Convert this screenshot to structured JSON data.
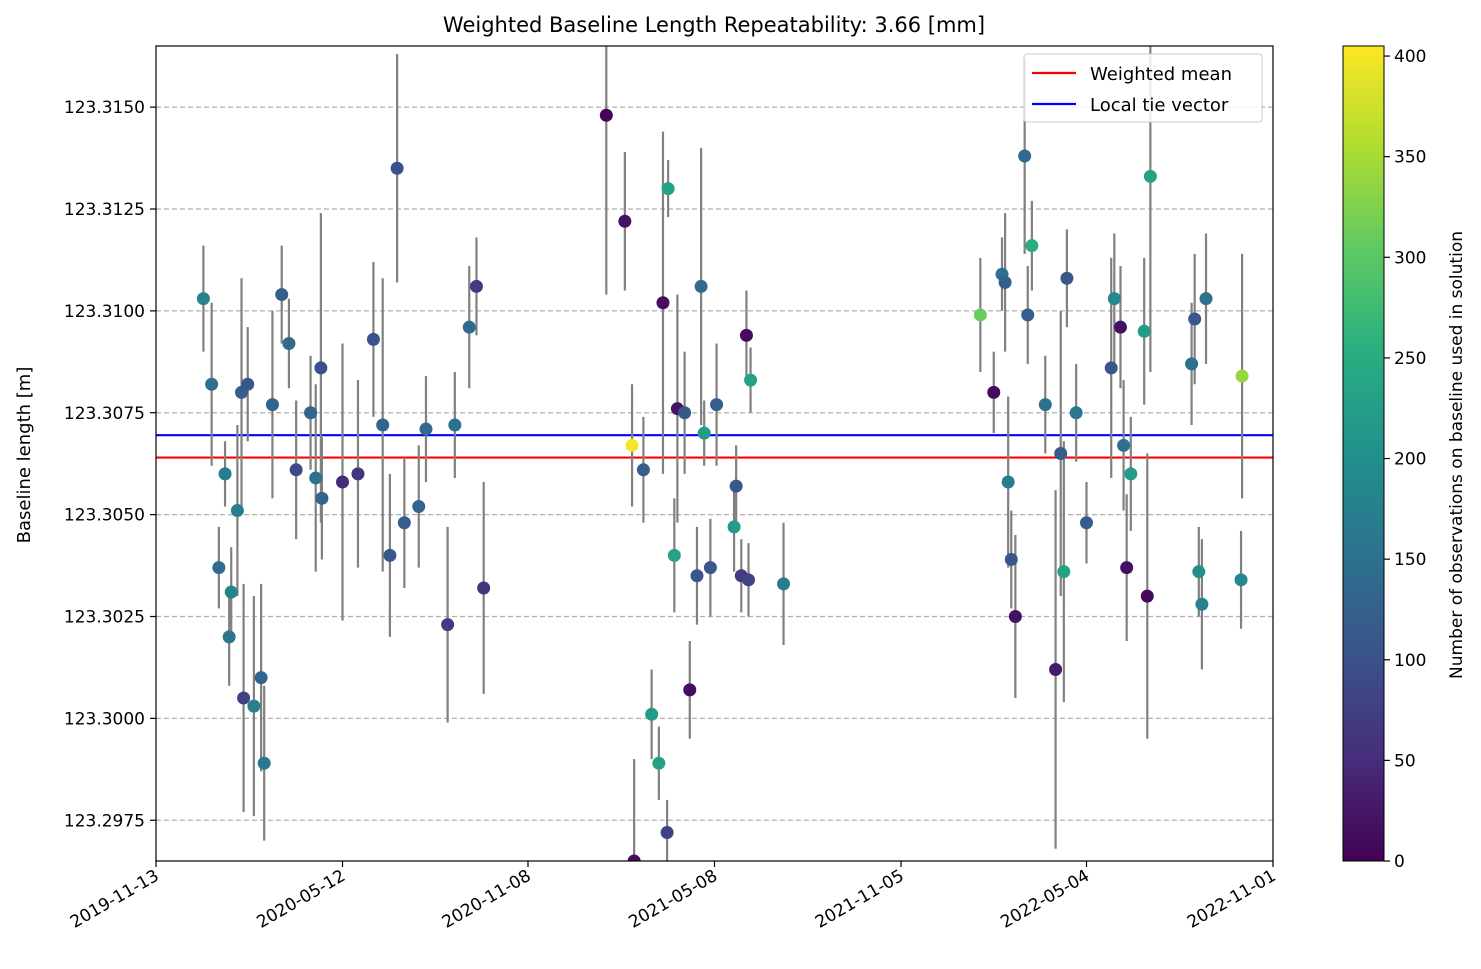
{
  "chart_data": {
    "type": "scatter",
    "title": "Weighted Baseline Length Repeatability: 3.66 [mm]",
    "xlabel": "",
    "ylabel": "Baseline length [m]",
    "x_type": "date",
    "xlim": [
      "2019-11-13",
      "2022-11-01"
    ],
    "ylim": [
      123.2965,
      123.3165
    ],
    "x_ticks": [
      "2019-11-13",
      "2020-05-12",
      "2020-11-08",
      "2021-05-08",
      "2021-11-05",
      "2022-05-04",
      "2022-11-01"
    ],
    "y_ticks": [
      "123.2975",
      "123.3000",
      "123.3025",
      "123.3050",
      "123.3075",
      "123.3100",
      "123.3125",
      "123.3150"
    ],
    "grid": "y",
    "legend_position": "top-right",
    "legend": [
      {
        "label": "Weighted mean",
        "color": "#ff0000"
      },
      {
        "label": "Local tie vector",
        "color": "#0000ff"
      }
    ],
    "hlines": [
      {
        "name": "Weighted mean",
        "y": 123.3064,
        "color": "#ff0000"
      },
      {
        "name": "Local tie vector",
        "y": 123.30695,
        "color": "#0000ff"
      }
    ],
    "errorbar_color": "#808080",
    "colormap": "viridis",
    "colorbar": {
      "label": "Number of observations on baseline used in solution",
      "range": [
        0,
        405
      ],
      "ticks": [
        "0",
        "50",
        "100",
        "150",
        "200",
        "250",
        "300",
        "350",
        "400"
      ]
    },
    "points": [
      {
        "x": "2019-12-29",
        "y": 123.3103,
        "err": 0.0013,
        "c": 180
      },
      {
        "x": "2020-01-06",
        "y": 123.3082,
        "err": 0.002,
        "c": 150
      },
      {
        "x": "2020-01-13",
        "y": 123.3037,
        "err": 0.001,
        "c": 140
      },
      {
        "x": "2020-01-19",
        "y": 123.306,
        "err": 0.0008,
        "c": 170
      },
      {
        "x": "2020-01-23",
        "y": 123.302,
        "err": 0.0012,
        "c": 160
      },
      {
        "x": "2020-01-25",
        "y": 123.3031,
        "err": 0.0011,
        "c": 180
      },
      {
        "x": "2020-01-31",
        "y": 123.3051,
        "err": 0.0021,
        "c": 170
      },
      {
        "x": "2020-02-04",
        "y": 123.308,
        "err": 0.0028,
        "c": 120
      },
      {
        "x": "2020-02-06",
        "y": 123.3005,
        "err": 0.0028,
        "c": 80
      },
      {
        "x": "2020-02-10",
        "y": 123.3082,
        "err": 0.0014,
        "c": 110
      },
      {
        "x": "2020-02-16",
        "y": 123.3003,
        "err": 0.0027,
        "c": 180
      },
      {
        "x": "2020-02-23",
        "y": 123.301,
        "err": 0.0023,
        "c": 130
      },
      {
        "x": "2020-02-26",
        "y": 123.2989,
        "err": 0.0019,
        "c": 160
      },
      {
        "x": "2020-03-05",
        "y": 123.3077,
        "err": 0.0023,
        "c": 130
      },
      {
        "x": "2020-03-14",
        "y": 123.3104,
        "err": 0.0012,
        "c": 120
      },
      {
        "x": "2020-03-21",
        "y": 123.3092,
        "err": 0.0011,
        "c": 140
      },
      {
        "x": "2020-03-28",
        "y": 123.3061,
        "err": 0.0017,
        "c": 90
      },
      {
        "x": "2020-04-11",
        "y": 123.3075,
        "err": 0.0014,
        "c": 130
      },
      {
        "x": "2020-04-16",
        "y": 123.3059,
        "err": 0.0023,
        "c": 150
      },
      {
        "x": "2020-04-21",
        "y": 123.3086,
        "err": 0.0038,
        "c": 100
      },
      {
        "x": "2020-04-22",
        "y": 123.3054,
        "err": 0.0015,
        "c": 130
      },
      {
        "x": "2020-05-12",
        "y": 123.3058,
        "err": 0.0034,
        "c": 50
      },
      {
        "x": "2020-05-27",
        "y": 123.306,
        "err": 0.0023,
        "c": 60
      },
      {
        "x": "2020-06-11",
        "y": 123.3093,
        "err": 0.0019,
        "c": 100
      },
      {
        "x": "2020-06-20",
        "y": 123.3072,
        "err": 0.0036,
        "c": 130
      },
      {
        "x": "2020-06-27",
        "y": 123.304,
        "err": 0.002,
        "c": 110
      },
      {
        "x": "2020-07-04",
        "y": 123.3135,
        "err": 0.0028,
        "c": 100
      },
      {
        "x": "2020-07-11",
        "y": 123.3048,
        "err": 0.0016,
        "c": 120
      },
      {
        "x": "2020-07-25",
        "y": 123.3052,
        "err": 0.0015,
        "c": 130
      },
      {
        "x": "2020-08-01",
        "y": 123.3071,
        "err": 0.0013,
        "c": 140
      },
      {
        "x": "2020-08-22",
        "y": 123.3023,
        "err": 0.0024,
        "c": 70
      },
      {
        "x": "2020-08-29",
        "y": 123.3072,
        "err": 0.0013,
        "c": 150
      },
      {
        "x": "2020-09-12",
        "y": 123.3096,
        "err": 0.0015,
        "c": 140
      },
      {
        "x": "2020-09-19",
        "y": 123.3106,
        "err": 0.0012,
        "c": 70
      },
      {
        "x": "2020-09-26",
        "y": 123.3032,
        "err": 0.0026,
        "c": 60
      },
      {
        "x": "2021-01-23",
        "y": 123.3148,
        "err": 0.0044,
        "c": 5
      },
      {
        "x": "2021-02-10",
        "y": 123.3122,
        "err": 0.0017,
        "c": 20
      },
      {
        "x": "2021-02-19",
        "y": 123.2965,
        "err": 0.0025,
        "c": 10
      },
      {
        "x": "2021-02-17",
        "y": 123.3067,
        "err": 0.0015,
        "c": 400
      },
      {
        "x": "2021-02-28",
        "y": 123.3061,
        "err": 0.0013,
        "c": 120
      },
      {
        "x": "2021-03-08",
        "y": 123.3001,
        "err": 0.0011,
        "c": 220
      },
      {
        "x": "2021-03-15",
        "y": 123.2989,
        "err": 0.0009,
        "c": 230
      },
      {
        "x": "2021-03-19",
        "y": 123.3102,
        "err": 0.0042,
        "c": 15
      },
      {
        "x": "2021-03-23",
        "y": 123.2972,
        "err": 0.0008,
        "c": 80
      },
      {
        "x": "2021-03-24",
        "y": 123.313,
        "err": 0.0007,
        "c": 230
      },
      {
        "x": "2021-03-30",
        "y": 123.304,
        "err": 0.0014,
        "c": 230
      },
      {
        "x": "2021-04-02",
        "y": 123.3076,
        "err": 0.0028,
        "c": 20
      },
      {
        "x": "2021-04-09",
        "y": 123.3075,
        "err": 0.0015,
        "c": 110
      },
      {
        "x": "2021-04-14",
        "y": 123.3007,
        "err": 0.0012,
        "c": 15
      },
      {
        "x": "2021-04-21",
        "y": 123.3035,
        "err": 0.0012,
        "c": 110
      },
      {
        "x": "2021-04-25",
        "y": 123.3106,
        "err": 0.0034,
        "c": 140
      },
      {
        "x": "2021-04-28",
        "y": 123.307,
        "err": 0.0008,
        "c": 220
      },
      {
        "x": "2021-05-04",
        "y": 123.3037,
        "err": 0.0012,
        "c": 110
      },
      {
        "x": "2021-05-10",
        "y": 123.3077,
        "err": 0.0015,
        "c": 120
      },
      {
        "x": "2021-05-27",
        "y": 123.3047,
        "err": 0.0011,
        "c": 220
      },
      {
        "x": "2021-05-29",
        "y": 123.3057,
        "err": 0.001,
        "c": 110
      },
      {
        "x": "2021-06-03",
        "y": 123.3035,
        "err": 0.0009,
        "c": 70
      },
      {
        "x": "2021-06-08",
        "y": 123.3094,
        "err": 0.0011,
        "c": 10
      },
      {
        "x": "2021-06-10",
        "y": 123.3034,
        "err": 0.0009,
        "c": 80
      },
      {
        "x": "2021-06-12",
        "y": 123.3083,
        "err": 0.0008,
        "c": 230
      },
      {
        "x": "2021-07-14",
        "y": 123.3033,
        "err": 0.0015,
        "c": 170
      },
      {
        "x": "2022-01-21",
        "y": 123.3099,
        "err": 0.0014,
        "c": 310
      },
      {
        "x": "2022-02-03",
        "y": 123.308,
        "err": 0.001,
        "c": 10
      },
      {
        "x": "2022-02-11",
        "y": 123.3109,
        "err": 0.0009,
        "c": 150
      },
      {
        "x": "2022-02-14",
        "y": 123.3107,
        "err": 0.0017,
        "c": 120
      },
      {
        "x": "2022-02-17",
        "y": 123.3058,
        "err": 0.0021,
        "c": 170
      },
      {
        "x": "2022-02-20",
        "y": 123.3039,
        "err": 0.0012,
        "c": 110
      },
      {
        "x": "2022-02-24",
        "y": 123.3025,
        "err": 0.002,
        "c": 20
      },
      {
        "x": "2022-03-05",
        "y": 123.3138,
        "err": 0.0024,
        "c": 140
      },
      {
        "x": "2022-03-08",
        "y": 123.3099,
        "err": 0.0012,
        "c": 120
      },
      {
        "x": "2022-03-12",
        "y": 123.3116,
        "err": 0.0011,
        "c": 250
      },
      {
        "x": "2022-03-25",
        "y": 123.3077,
        "err": 0.0012,
        "c": 150
      },
      {
        "x": "2022-04-04",
        "y": 123.3012,
        "err": 0.0044,
        "c": 30
      },
      {
        "x": "2022-04-09",
        "y": 123.3065,
        "err": 0.0035,
        "c": 120
      },
      {
        "x": "2022-04-12",
        "y": 123.3036,
        "err": 0.0032,
        "c": 230
      },
      {
        "x": "2022-04-15",
        "y": 123.3108,
        "err": 0.0012,
        "c": 110
      },
      {
        "x": "2022-04-24",
        "y": 123.3075,
        "err": 0.0012,
        "c": 160
      },
      {
        "x": "2022-05-04",
        "y": 123.3048,
        "err": 0.001,
        "c": 120
      },
      {
        "x": "2022-05-28",
        "y": 123.3086,
        "err": 0.0027,
        "c": 110
      },
      {
        "x": "2022-05-31",
        "y": 123.3103,
        "err": 0.0016,
        "c": 190
      },
      {
        "x": "2022-06-06",
        "y": 123.3096,
        "err": 0.0015,
        "c": 20
      },
      {
        "x": "2022-06-09",
        "y": 123.3067,
        "err": 0.0016,
        "c": 150
      },
      {
        "x": "2022-06-12",
        "y": 123.3037,
        "err": 0.0018,
        "c": 20
      },
      {
        "x": "2022-06-16",
        "y": 123.306,
        "err": 0.0014,
        "c": 220
      },
      {
        "x": "2022-06-29",
        "y": 123.3095,
        "err": 0.0018,
        "c": 220
      },
      {
        "x": "2022-07-02",
        "y": 123.303,
        "err": 0.0035,
        "c": 10
      },
      {
        "x": "2022-07-05",
        "y": 123.3133,
        "err": 0.0048,
        "c": 230
      },
      {
        "x": "2022-08-14",
        "y": 123.3087,
        "err": 0.0015,
        "c": 150
      },
      {
        "x": "2022-08-17",
        "y": 123.3098,
        "err": 0.0016,
        "c": 110
      },
      {
        "x": "2022-08-21",
        "y": 123.3036,
        "err": 0.0011,
        "c": 200
      },
      {
        "x": "2022-08-24",
        "y": 123.3028,
        "err": 0.0016,
        "c": 180
      },
      {
        "x": "2022-08-28",
        "y": 123.3103,
        "err": 0.0016,
        "c": 150
      },
      {
        "x": "2022-10-01",
        "y": 123.3034,
        "err": 0.0012,
        "c": 190
      },
      {
        "x": "2022-10-02",
        "y": 123.3084,
        "err": 0.003,
        "c": 340
      }
    ]
  }
}
